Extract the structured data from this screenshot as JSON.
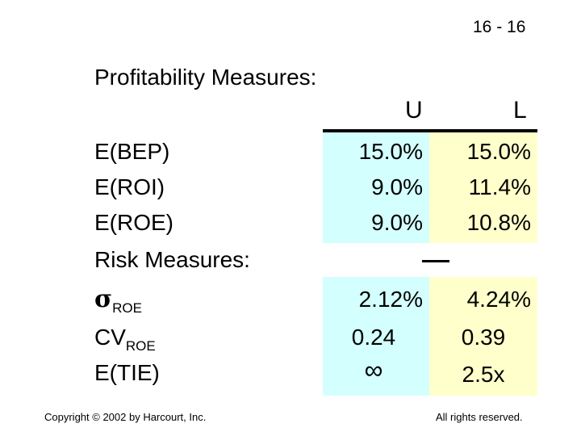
{
  "slide_number": "16 - 16",
  "title": "Profitability Measures:",
  "columns": {
    "u_header": "U",
    "l_header": "L"
  },
  "rows": {
    "bep": {
      "label": "E(BEP)",
      "u": "15.0%",
      "l": "15.0%"
    },
    "roi": {
      "label": "E(ROI)",
      "u": "9.0%",
      "l": "11.4%"
    },
    "roe": {
      "label": "E(ROE)",
      "u": "9.0%",
      "l": "10.8%"
    }
  },
  "risk_heading": "Risk Measures:",
  "risk_rows": {
    "sigma": {
      "symbol": "σ",
      "subscript": "ROE",
      "u": "2.12%",
      "l": "4.24%"
    },
    "cv": {
      "label": "CV",
      "subscript": "ROE",
      "u": "0.24",
      "l": "0.39"
    },
    "tie": {
      "label": "E(TIE)",
      "u": "∞",
      "l": "2.5x"
    }
  },
  "footer": {
    "copyright": "Copyright © 2002 by Harcourt, Inc.",
    "rights": "All rights reserved."
  },
  "colors": {
    "u_fill": "#d4ffff",
    "l_fill": "#ffffcc"
  }
}
